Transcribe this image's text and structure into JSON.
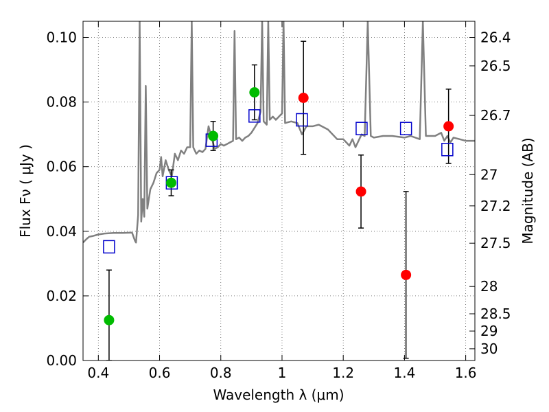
{
  "chart_data": {
    "type": "scatter",
    "xlabel": "Wavelength  λ (μm)",
    "ylabel": "Flux  Fν  ( μJy )",
    "ylabel_right": "Magnitude (AB)",
    "xlim": [
      0.35,
      1.63
    ],
    "ylim": [
      0.0,
      0.105
    ],
    "grid": true,
    "x_ticks": [
      0.4,
      0.6,
      0.8,
      1.0,
      1.2,
      1.4,
      1.6
    ],
    "x_tick_labels": [
      "0.4",
      "0.6",
      "0.8",
      "1",
      "1.2",
      "1.4",
      "1.6"
    ],
    "y_ticks": [
      0.0,
      0.02,
      0.04,
      0.06,
      0.08,
      0.1
    ],
    "y_tick_labels": [
      "0.00",
      "0.02",
      "0.04",
      "0.06",
      "0.08",
      "0.10"
    ],
    "right_ticks": [
      {
        "label": "26.4",
        "mag": 26.4
      },
      {
        "label": "26.5",
        "mag": 26.5
      },
      {
        "label": "26.7",
        "mag": 26.7
      },
      {
        "label": "27",
        "mag": 27.0
      },
      {
        "label": "27.2",
        "mag": 27.2
      },
      {
        "label": "27.5",
        "mag": 27.5
      },
      {
        "label": "28",
        "mag": 28.0
      },
      {
        "label": "28.5",
        "mag": 28.5
      },
      {
        "label": "29",
        "mag": 29.0
      },
      {
        "label": "30",
        "mag": 30.0
      }
    ],
    "colors": {
      "spectrum": "#808080",
      "green_points": "#00bb00",
      "red_points": "#ff0000",
      "model_squares": "#0000cc",
      "errorbar": "#000000",
      "grid": "#555555"
    },
    "spectrum": [
      [
        0.35,
        0.0365
      ],
      [
        0.36,
        0.0375
      ],
      [
        0.37,
        0.0383
      ],
      [
        0.38,
        0.0385
      ],
      [
        0.4,
        0.039
      ],
      [
        0.42,
        0.0393
      ],
      [
        0.45,
        0.0395
      ],
      [
        0.48,
        0.0395
      ],
      [
        0.51,
        0.0396
      ],
      [
        0.52,
        0.037
      ],
      [
        0.523,
        0.0365
      ],
      [
        0.53,
        0.045
      ],
      [
        0.535,
        0.105
      ],
      [
        0.54,
        0.043
      ],
      [
        0.545,
        0.05
      ],
      [
        0.55,
        0.0445
      ],
      [
        0.555,
        0.085
      ],
      [
        0.56,
        0.047
      ],
      [
        0.57,
        0.053
      ],
      [
        0.58,
        0.055
      ],
      [
        0.59,
        0.058
      ],
      [
        0.6,
        0.059
      ],
      [
        0.605,
        0.063
      ],
      [
        0.61,
        0.057
      ],
      [
        0.62,
        0.062
      ],
      [
        0.63,
        0.059
      ],
      [
        0.64,
        0.057
      ],
      [
        0.65,
        0.064
      ],
      [
        0.66,
        0.062
      ],
      [
        0.67,
        0.065
      ],
      [
        0.68,
        0.064
      ],
      [
        0.69,
        0.066
      ],
      [
        0.7,
        0.066
      ],
      [
        0.705,
        0.105
      ],
      [
        0.71,
        0.066
      ],
      [
        0.72,
        0.064
      ],
      [
        0.73,
        0.065
      ],
      [
        0.74,
        0.0645
      ],
      [
        0.75,
        0.0655
      ],
      [
        0.76,
        0.0725
      ],
      [
        0.77,
        0.069
      ],
      [
        0.78,
        0.0655
      ],
      [
        0.79,
        0.066
      ],
      [
        0.8,
        0.067
      ],
      [
        0.81,
        0.0665
      ],
      [
        0.82,
        0.067
      ],
      [
        0.83,
        0.0675
      ],
      [
        0.84,
        0.068
      ],
      [
        0.845,
        0.102
      ],
      [
        0.85,
        0.0685
      ],
      [
        0.86,
        0.069
      ],
      [
        0.87,
        0.068
      ],
      [
        0.88,
        0.069
      ],
      [
        0.89,
        0.0695
      ],
      [
        0.9,
        0.0705
      ],
      [
        0.91,
        0.072
      ],
      [
        0.92,
        0.0735
      ],
      [
        0.93,
        0.077
      ],
      [
        0.935,
        0.105
      ],
      [
        0.94,
        0.074
      ],
      [
        0.95,
        0.073
      ],
      [
        0.955,
        0.105
      ],
      [
        0.96,
        0.0745
      ],
      [
        0.97,
        0.0755
      ],
      [
        0.98,
        0.0745
      ],
      [
        0.99,
        0.0755
      ],
      [
        1.0,
        0.0765
      ],
      [
        1.005,
        0.105
      ],
      [
        1.01,
        0.0735
      ],
      [
        1.03,
        0.074
      ],
      [
        1.05,
        0.0735
      ],
      [
        1.065,
        0.07
      ],
      [
        1.08,
        0.0725
      ],
      [
        1.1,
        0.0725
      ],
      [
        1.12,
        0.073
      ],
      [
        1.15,
        0.0715
      ],
      [
        1.18,
        0.0685
      ],
      [
        1.2,
        0.0685
      ],
      [
        1.22,
        0.0665
      ],
      [
        1.23,
        0.0685
      ],
      [
        1.24,
        0.066
      ],
      [
        1.26,
        0.07
      ],
      [
        1.27,
        0.0695
      ],
      [
        1.28,
        0.105
      ],
      [
        1.29,
        0.0695
      ],
      [
        1.3,
        0.069
      ],
      [
        1.33,
        0.0695
      ],
      [
        1.36,
        0.0695
      ],
      [
        1.4,
        0.069
      ],
      [
        1.42,
        0.0695
      ],
      [
        1.45,
        0.0685
      ],
      [
        1.46,
        0.105
      ],
      [
        1.47,
        0.0695
      ],
      [
        1.5,
        0.0695
      ],
      [
        1.52,
        0.0705
      ],
      [
        1.53,
        0.068
      ],
      [
        1.54,
        0.0695
      ],
      [
        1.55,
        0.0675
      ],
      [
        1.56,
        0.069
      ],
      [
        1.58,
        0.0685
      ],
      [
        1.6,
        0.068
      ],
      [
        1.63,
        0.068
      ]
    ],
    "observed_green": [
      {
        "x": 0.435,
        "y": 0.0125,
        "err_low": 0.0125,
        "err_high": 0.0155
      },
      {
        "x": 0.638,
        "y": 0.055,
        "err_low": 0.004,
        "err_high": 0.004
      },
      {
        "x": 0.775,
        "y": 0.0695,
        "err_low": 0.0045,
        "err_high": 0.0045
      },
      {
        "x": 0.91,
        "y": 0.083,
        "err_low": 0.0085,
        "err_high": 0.0085
      }
    ],
    "observed_red": [
      {
        "x": 1.07,
        "y": 0.0813,
        "err_low": 0.0175,
        "err_high": 0.0175
      },
      {
        "x": 1.258,
        "y": 0.0523,
        "err_low": 0.0113,
        "err_high": 0.0113
      },
      {
        "x": 1.405,
        "y": 0.0265,
        "err_low": 0.0258,
        "err_high": 0.0258
      },
      {
        "x": 1.544,
        "y": 0.0725,
        "err_low": 0.0115,
        "err_high": 0.0115
      }
    ],
    "model_squares": [
      {
        "x": 0.435,
        "y": 0.0352
      },
      {
        "x": 0.64,
        "y": 0.055
      },
      {
        "x": 0.77,
        "y": 0.0682
      },
      {
        "x": 0.91,
        "y": 0.0757
      },
      {
        "x": 1.065,
        "y": 0.0745
      },
      {
        "x": 1.26,
        "y": 0.0718
      },
      {
        "x": 1.405,
        "y": 0.0718
      },
      {
        "x": 1.54,
        "y": 0.0653
      }
    ]
  }
}
